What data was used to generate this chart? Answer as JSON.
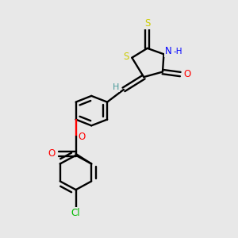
{
  "background_color": "#e8e8e8",
  "atom_colors": {
    "S": "#cccc00",
    "N": "#0000ff",
    "O": "#ff0000",
    "Cl": "#00bb00",
    "C": "#000000",
    "H": "#4a9a9a"
  },
  "figsize": [
    3.0,
    3.0
  ],
  "dpi": 100
}
